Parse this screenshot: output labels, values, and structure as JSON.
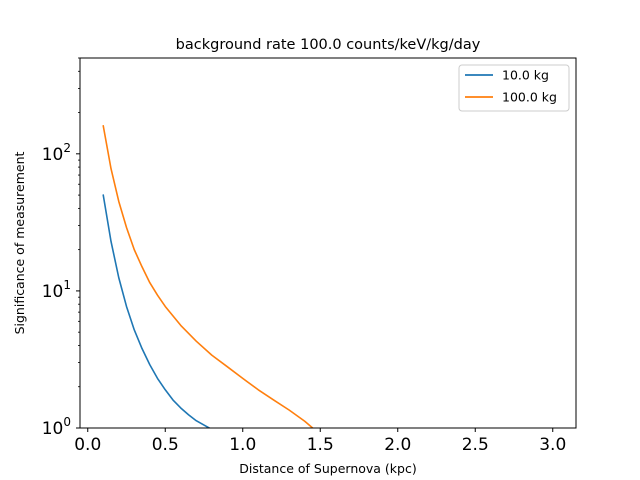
{
  "chart_data": {
    "type": "line",
    "title": "background rate 100.0 counts/keV/kg/day",
    "xlabel": "Distance of Supernova (kpc)",
    "ylabel": "Significance of measurement",
    "xlim": [
      -0.05,
      3.15
    ],
    "ylim": [
      1,
      500
    ],
    "yscale": "log",
    "x_ticks": [
      "0.0",
      "0.5",
      "1.0",
      "1.5",
      "2.0",
      "2.5",
      "3.0"
    ],
    "x_tick_values": [
      0.0,
      0.5,
      1.0,
      1.5,
      2.0,
      2.5,
      3.0
    ],
    "y_ticks": [
      {
        "value": 1,
        "base": "10",
        "exp": "0"
      },
      {
        "value": 10,
        "base": "10",
        "exp": "1"
      },
      {
        "value": 100,
        "base": "10",
        "exp": "2"
      }
    ],
    "grid": false,
    "legend_position": "top-right",
    "series": [
      {
        "name": "10.0 kg",
        "color": "#1f77b4",
        "x": [
          0.1,
          0.15,
          0.2,
          0.25,
          0.3,
          0.35,
          0.4,
          0.45,
          0.5,
          0.55,
          0.6,
          0.65,
          0.7,
          0.75,
          0.82
        ],
        "y": [
          50,
          23,
          12.5,
          7.7,
          5.2,
          3.8,
          2.9,
          2.3,
          1.9,
          1.6,
          1.4,
          1.25,
          1.13,
          1.05,
          0.95
        ]
      },
      {
        "name": "100.0 kg",
        "color": "#ff7f0e",
        "x": [
          0.1,
          0.15,
          0.2,
          0.25,
          0.3,
          0.35,
          0.4,
          0.45,
          0.5,
          0.6,
          0.7,
          0.8,
          0.9,
          1.0,
          1.1,
          1.2,
          1.3,
          1.4,
          1.46
        ],
        "y": [
          160,
          78,
          45,
          29,
          20,
          15,
          11.5,
          9.3,
          7.7,
          5.6,
          4.3,
          3.4,
          2.8,
          2.3,
          1.9,
          1.6,
          1.35,
          1.12,
          0.98
        ]
      }
    ]
  }
}
